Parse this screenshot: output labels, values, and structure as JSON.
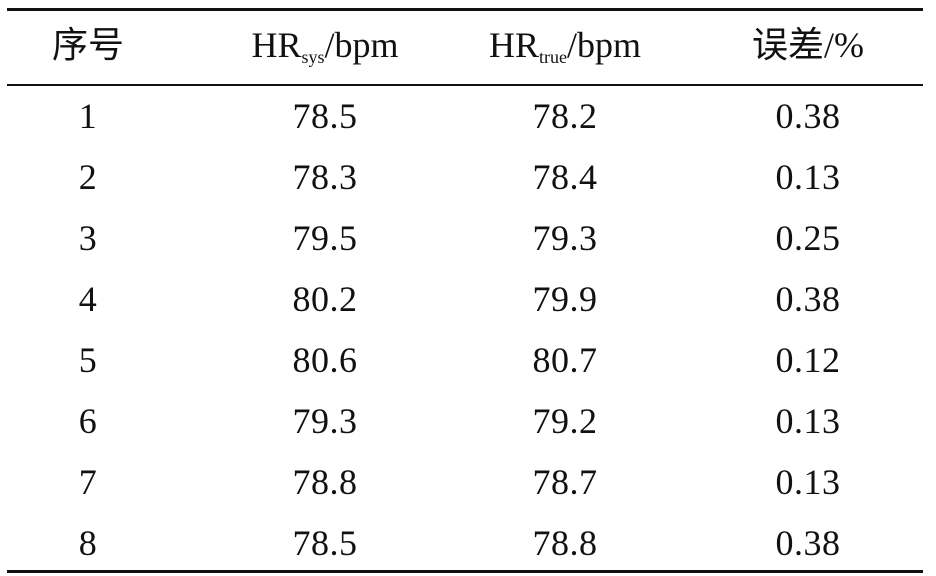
{
  "table": {
    "header": [
      {
        "text": "序号"
      },
      {
        "main": "HR",
        "sub": "sys",
        "unit": "/bpm"
      },
      {
        "main": "HR",
        "sub": "true",
        "unit": "/bpm"
      },
      {
        "text": "误差/%"
      }
    ],
    "rows": [
      [
        "1",
        "78.5",
        "78.2",
        "0.38"
      ],
      [
        "2",
        "78.3",
        "78.4",
        "0.13"
      ],
      [
        "3",
        "79.5",
        "79.3",
        "0.25"
      ],
      [
        "4",
        "80.2",
        "79.9",
        "0.38"
      ],
      [
        "5",
        "80.6",
        "80.7",
        "0.12"
      ],
      [
        "6",
        "79.3",
        "79.2",
        "0.13"
      ],
      [
        "7",
        "78.8",
        "78.7",
        "0.13"
      ],
      [
        "8",
        "78.5",
        "78.8",
        "0.38"
      ]
    ]
  }
}
